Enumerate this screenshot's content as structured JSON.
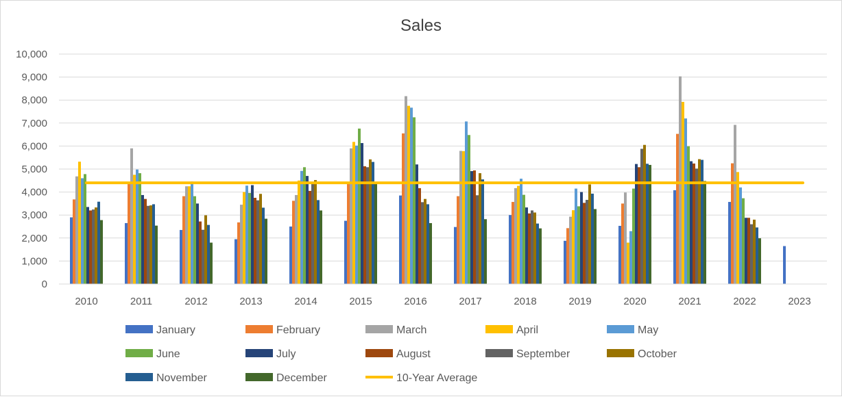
{
  "chart_data": {
    "type": "bar",
    "title": "Sales",
    "xlabel": "",
    "ylabel": "",
    "ylim": [
      0,
      10000
    ],
    "yticks": [
      "0",
      "1,000",
      "2,000",
      "3,000",
      "4,000",
      "5,000",
      "6,000",
      "7,000",
      "8,000",
      "9,000",
      "10,000"
    ],
    "grid": true,
    "legend_position": "bottom",
    "categories": [
      "2010",
      "2011",
      "2012",
      "2013",
      "2014",
      "2015",
      "2016",
      "2017",
      "2018",
      "2019",
      "2020",
      "2021",
      "2022",
      "2023"
    ],
    "series": [
      {
        "name": "January",
        "color": "#4472C4",
        "values": [
          2900,
          2650,
          2350,
          1950,
          2500,
          2750,
          3850,
          2480,
          3000,
          1880,
          2530,
          4080,
          3570,
          1650
        ]
      },
      {
        "name": "February",
        "color": "#ED7D31",
        "values": [
          3680,
          4400,
          3820,
          2680,
          3620,
          4400,
          6550,
          3820,
          3570,
          2430,
          3500,
          6530,
          5250,
          null
        ]
      },
      {
        "name": "March",
        "color": "#A5A5A5",
        "values": [
          4680,
          5900,
          4250,
          3450,
          3870,
          5900,
          8170,
          5790,
          4170,
          2930,
          3980,
          9030,
          6920,
          null
        ]
      },
      {
        "name": "April",
        "color": "#FFC000",
        "values": [
          5320,
          4750,
          4250,
          4000,
          4500,
          6180,
          7750,
          5780,
          4270,
          3210,
          1800,
          7920,
          4870,
          null
        ]
      },
      {
        "name": "May",
        "color": "#5B9BD5",
        "values": [
          4600,
          4980,
          4460,
          4280,
          4920,
          6020,
          7670,
          7070,
          4580,
          4150,
          2300,
          7200,
          4200,
          null
        ]
      },
      {
        "name": "June",
        "color": "#70AD47",
        "values": [
          4780,
          4820,
          3820,
          3960,
          5080,
          6760,
          7250,
          6480,
          3880,
          3380,
          4150,
          5990,
          3730,
          null
        ]
      },
      {
        "name": "July",
        "color": "#264478",
        "values": [
          3350,
          3870,
          3500,
          4300,
          4700,
          6130,
          5200,
          4910,
          3330,
          4000,
          5220,
          5340,
          2880,
          null
        ]
      },
      {
        "name": "August",
        "color": "#9E480E",
        "values": [
          3200,
          3700,
          2720,
          3750,
          4050,
          5120,
          4170,
          4940,
          3070,
          3530,
          5080,
          5240,
          2880,
          null
        ]
      },
      {
        "name": "September",
        "color": "#636363",
        "values": [
          3240,
          3400,
          2360,
          3640,
          4350,
          5080,
          3560,
          3860,
          3200,
          3660,
          5880,
          5020,
          2600,
          null
        ]
      },
      {
        "name": "October",
        "color": "#997300",
        "values": [
          3330,
          3420,
          2990,
          3920,
          4520,
          5420,
          3700,
          4820,
          3110,
          4330,
          6050,
          5430,
          2800,
          null
        ]
      },
      {
        "name": "November",
        "color": "#255E91",
        "values": [
          3580,
          3470,
          2570,
          3320,
          3650,
          5310,
          3470,
          4550,
          2630,
          3930,
          5230,
          5400,
          2460,
          null
        ]
      },
      {
        "name": "December",
        "color": "#43682B",
        "values": [
          2780,
          2540,
          1800,
          2840,
          3200,
          4380,
          2650,
          2820,
          2420,
          3260,
          5180,
          4480,
          1990,
          null
        ]
      }
    ],
    "reference_line": {
      "name": "10-Year Average",
      "color": "#FFC000",
      "value": 4400
    }
  }
}
